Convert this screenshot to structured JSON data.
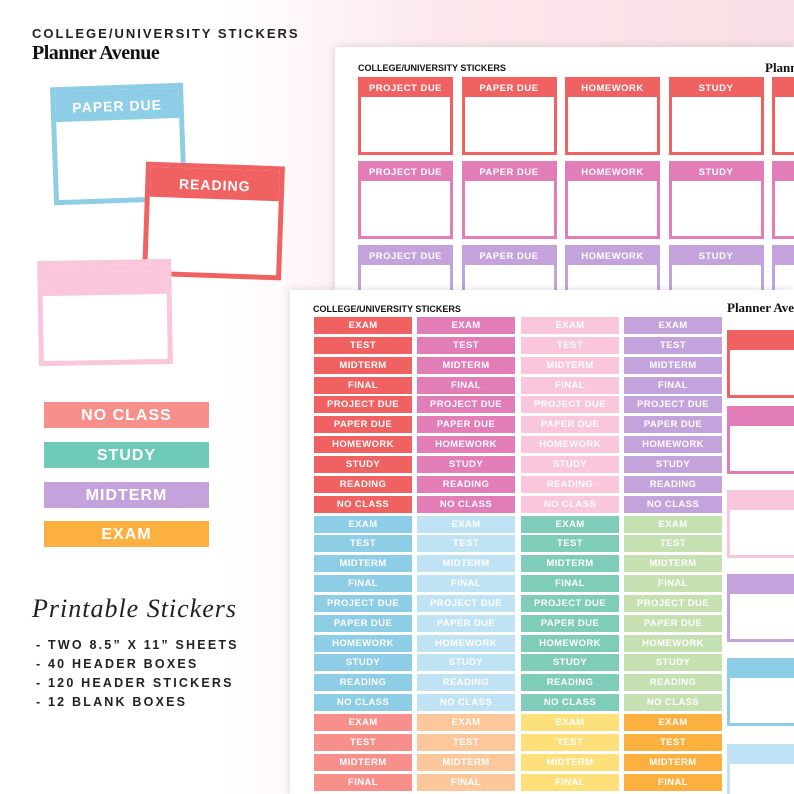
{
  "header": {
    "subtitle": "COLLEGE/UNIVERSITY STICKERS",
    "brand": "Planner Avenue"
  },
  "header_boxes": [
    {
      "label": "PAPER DUE"
    },
    {
      "label": "READING"
    }
  ],
  "label_stickers": [
    "NO CLASS",
    "STUDY",
    "MIDTERM",
    "EXAM"
  ],
  "features": {
    "title": "Printable Stickers",
    "items": [
      "- TWO 8.5” X 11” SHEETS",
      "- 40 HEADER BOXES",
      "- 120 HEADER STICKERS",
      "- 12 BLANK BOXES"
    ]
  },
  "sheet_1": {
    "title": "COLLEGE/UNIVERSITY STICKERS",
    "brand": "Planner Avenue",
    "box_labels": [
      "PROJECT DUE",
      "PAPER DUE",
      "HOMEWORK",
      "STUDY"
    ]
  },
  "sheet_2": {
    "title": "COLLEGE/UNIVERSITY STICKERS",
    "brand": "Planner Avenue",
    "labels": [
      "EXAM",
      "TEST",
      "MIDTERM",
      "FINAL",
      "PROJECT DUE",
      "PAPER DUE",
      "HOMEWORK",
      "STUDY",
      "READING",
      "NO CLASS"
    ]
  }
}
